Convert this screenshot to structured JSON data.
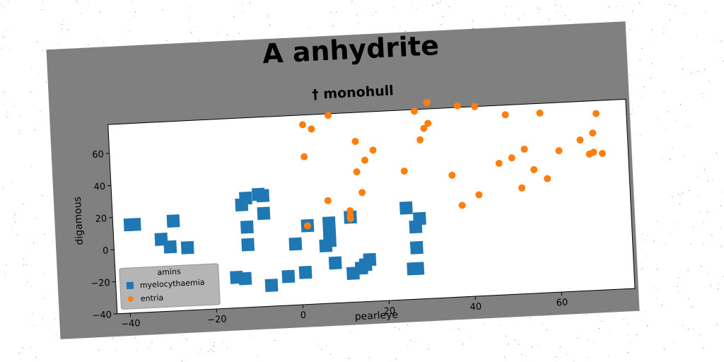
{
  "figure": {
    "title": "A anhydrite",
    "subtitle": "† monohull",
    "background": "#808080"
  },
  "chart_data": {
    "type": "scatter",
    "title": "A anhydrite",
    "subtitle": "† monohull",
    "xlabel": "pearleye",
    "ylabel": "digamous",
    "xlim": [
      -43,
      77
    ],
    "ylim": [
      -40,
      78
    ],
    "xticks": [
      -40,
      -20,
      0,
      20,
      40,
      60
    ],
    "yticks": [
      -40,
      -20,
      0,
      20,
      40,
      60
    ],
    "grid": false,
    "legend": {
      "title": "amins",
      "placement": "lower-left"
    },
    "series": [
      {
        "name": "myelocythaemia",
        "marker": "square",
        "color": "#1f77b4",
        "points": [
          [
            -39,
            15
          ],
          [
            -38,
            15
          ],
          [
            -32,
            5
          ],
          [
            -30,
            0
          ],
          [
            -29,
            16
          ],
          [
            -26,
            -1
          ],
          [
            -13,
            24
          ],
          [
            -12,
            28
          ],
          [
            -9,
            30
          ],
          [
            -8,
            29
          ],
          [
            -12,
            10
          ],
          [
            -8,
            18
          ],
          [
            -12,
            -1
          ],
          [
            -15,
            -21
          ],
          [
            -13,
            -22
          ],
          [
            -7,
            -27
          ],
          [
            -3,
            -22
          ],
          [
            -1,
            -2
          ],
          [
            1,
            -20
          ],
          [
            2,
            9
          ],
          [
            6,
            -4
          ],
          [
            7,
            3
          ],
          [
            7,
            10
          ],
          [
            7,
            -1
          ],
          [
            8,
            -15
          ],
          [
            12,
            -22
          ],
          [
            14,
            -19
          ],
          [
            15,
            -17
          ],
          [
            16,
            -14
          ],
          [
            12,
            13
          ],
          [
            25,
            17
          ],
          [
            27,
            5
          ],
          [
            27,
            -8
          ],
          [
            28,
            10
          ],
          [
            27,
            -21
          ],
          [
            26,
            -21
          ]
        ]
      },
      {
        "name": "entria",
        "marker": "circle",
        "color": "#ff7f0e",
        "points": [
          [
            2,
            72
          ],
          [
            4,
            69
          ],
          [
            8,
            77
          ],
          [
            2,
            52
          ],
          [
            14,
            60
          ],
          [
            16,
            48
          ],
          [
            18,
            54
          ],
          [
            14,
            41
          ],
          [
            15,
            28
          ],
          [
            7,
            24
          ],
          [
            12,
            17
          ],
          [
            12,
            14
          ],
          [
            12,
            12
          ],
          [
            2,
            9
          ],
          [
            25,
            40
          ],
          [
            28,
            77
          ],
          [
            30,
            66
          ],
          [
            29,
            59
          ],
          [
            31,
            69
          ],
          [
            31,
            82
          ],
          [
            38,
            79
          ],
          [
            42,
            78
          ],
          [
            49,
            72
          ],
          [
            57,
            72
          ],
          [
            36,
            36
          ],
          [
            38,
            17
          ],
          [
            42,
            23
          ],
          [
            47,
            42
          ],
          [
            50,
            45
          ],
          [
            53,
            50
          ],
          [
            52,
            26
          ],
          [
            55,
            37
          ],
          [
            58,
            31
          ],
          [
            61,
            48
          ],
          [
            63,
            88
          ],
          [
            66,
            88
          ],
          [
            66,
            54
          ],
          [
            68,
            45
          ],
          [
            69,
            46
          ],
          [
            69,
            58
          ],
          [
            70,
            70
          ],
          [
            71,
            45
          ]
        ]
      }
    ]
  }
}
